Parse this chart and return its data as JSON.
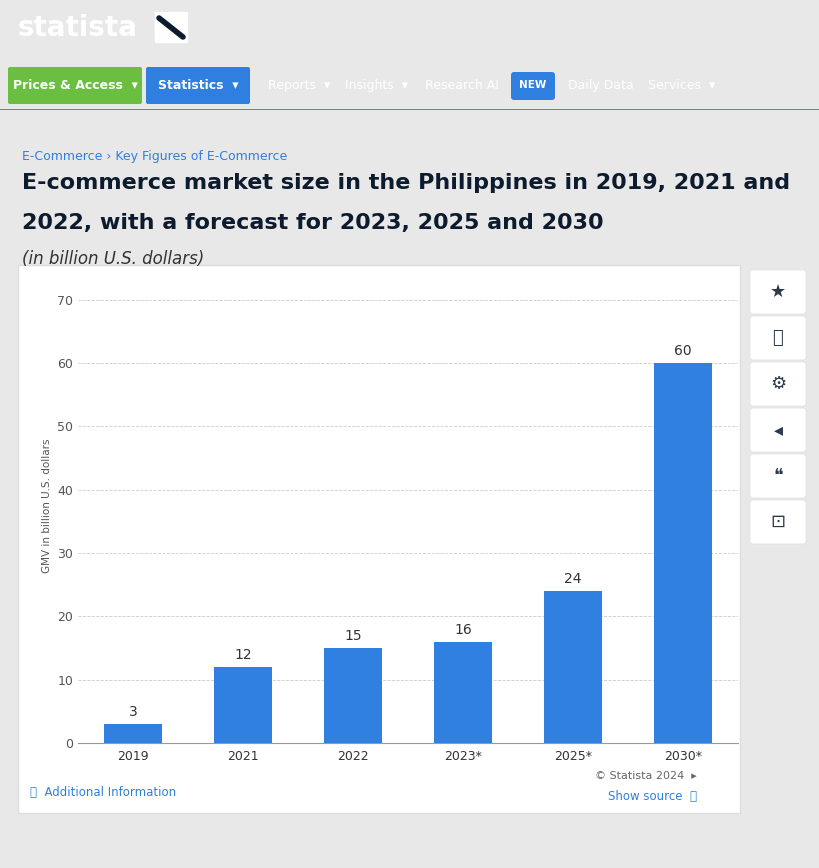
{
  "categories": [
    "2019",
    "2021",
    "2022",
    "2023*",
    "2025*",
    "2030*"
  ],
  "values": [
    3,
    12,
    15,
    16,
    24,
    60
  ],
  "bar_color": "#2f80e0",
  "bar_label_color": "#333333",
  "ylim": [
    0,
    75
  ],
  "yticks": [
    0,
    10,
    20,
    30,
    40,
    50,
    60,
    70
  ],
  "ylabel": "GMV in billion U.S. dollars",
  "grid_color": "#cccccc",
  "header_bg": "#0d1b2e",
  "breadcrumb_text1": "E-Commerce",
  "breadcrumb_arrow": " › ",
  "breadcrumb_text2": "Key Figures of E-Commerce",
  "breadcrumb_color": "#2f7fe0",
  "title_line1": "E-commerce market size in the Philippines in 2019, 2021 and",
  "title_line2": "2022, with a forecast for 2023, 2025 and 2030",
  "subtitle": "(in billion U.S. dollars)",
  "title_color": "#0d1b2e",
  "subtitle_color": "#333333",
  "footer_left": "ⓘ  Additional Information",
  "footer_right1": "© Statista 2024  ▸",
  "footer_right2": "Show source  ⓘ",
  "footer_color_blue": "#2f7fe0",
  "footer_color_gray": "#666666",
  "prices_btn_color": "#6abf40",
  "statistics_btn_color": "#2f7fe0",
  "new_badge_color": "#2f7fe0",
  "right_panel_bg": "#f0f0f0",
  "icon_bg": "#ffffff",
  "icon_color": "#2d3a4a",
  "bar_label_fontsize": 10,
  "axis_tick_fontsize": 9,
  "ylabel_fontsize": 7.5,
  "statista_fontsize": 20,
  "nav_fontsize": 9,
  "title_fontsize": 16,
  "subtitle_fontsize": 12,
  "breadcrumb_fontsize": 9
}
